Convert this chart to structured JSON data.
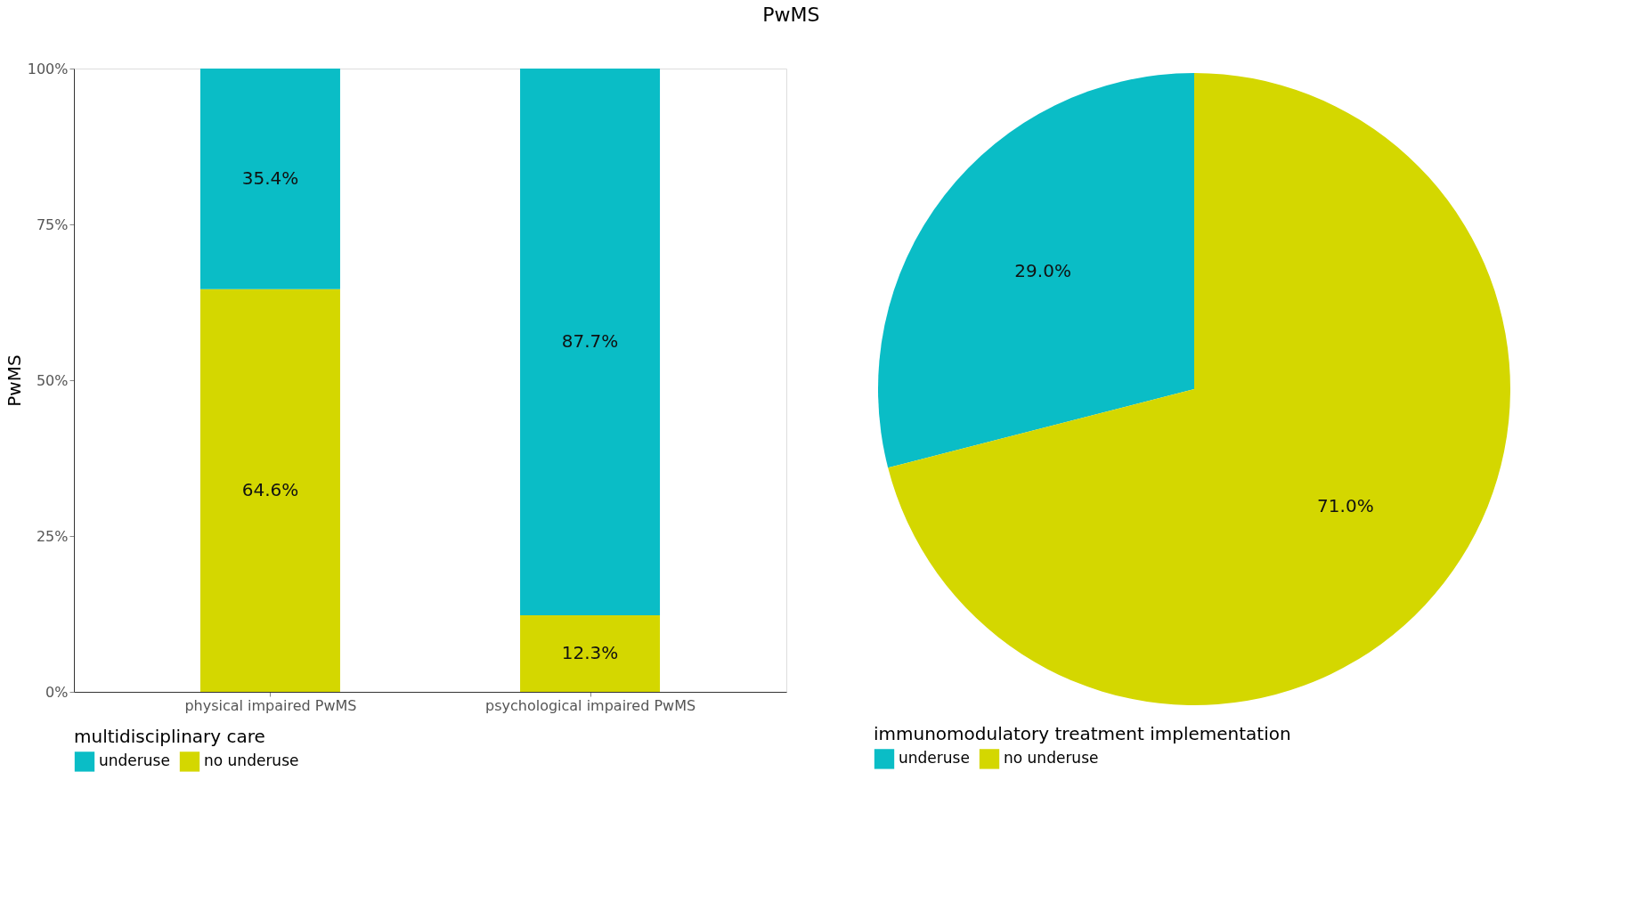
{
  "chart_data": [
    {
      "type": "bar",
      "title": "PwMS",
      "ylabel": "PwMS",
      "legend_title": "multidisciplinary care",
      "legend": "bottom",
      "stacked": true,
      "grid": false,
      "categories": [
        "physical impaired PwMS",
        "psychological impaired PwMS"
      ],
      "ylim": [
        0,
        100
      ],
      "yticks": [
        {
          "value": 0,
          "label": "0%"
        },
        {
          "value": 25,
          "label": "25%"
        },
        {
          "value": 50,
          "label": "50%"
        },
        {
          "value": 75,
          "label": "75%"
        },
        {
          "value": 100,
          "label": "100%"
        }
      ],
      "series": [
        {
          "name": "no underuse",
          "color": "#d4d700",
          "values": [
            64.6,
            12.3
          ],
          "value_labels": [
            "64.6%",
            "12.3%"
          ]
        },
        {
          "name": "underuse",
          "color": "#0abdc6",
          "values": [
            35.4,
            87.7
          ],
          "value_labels": [
            "35.4%",
            "87.7%"
          ]
        }
      ]
    },
    {
      "type": "pie",
      "legend_title": "immunomodulatory treatment implementation",
      "legend": "bottom",
      "categories": [
        "underuse",
        "no underuse"
      ],
      "values": [
        29.0,
        71.0
      ],
      "colors": [
        "#0abdc6",
        "#d4d700"
      ],
      "value_labels": [
        "29.0%",
        "71.0%"
      ]
    }
  ]
}
